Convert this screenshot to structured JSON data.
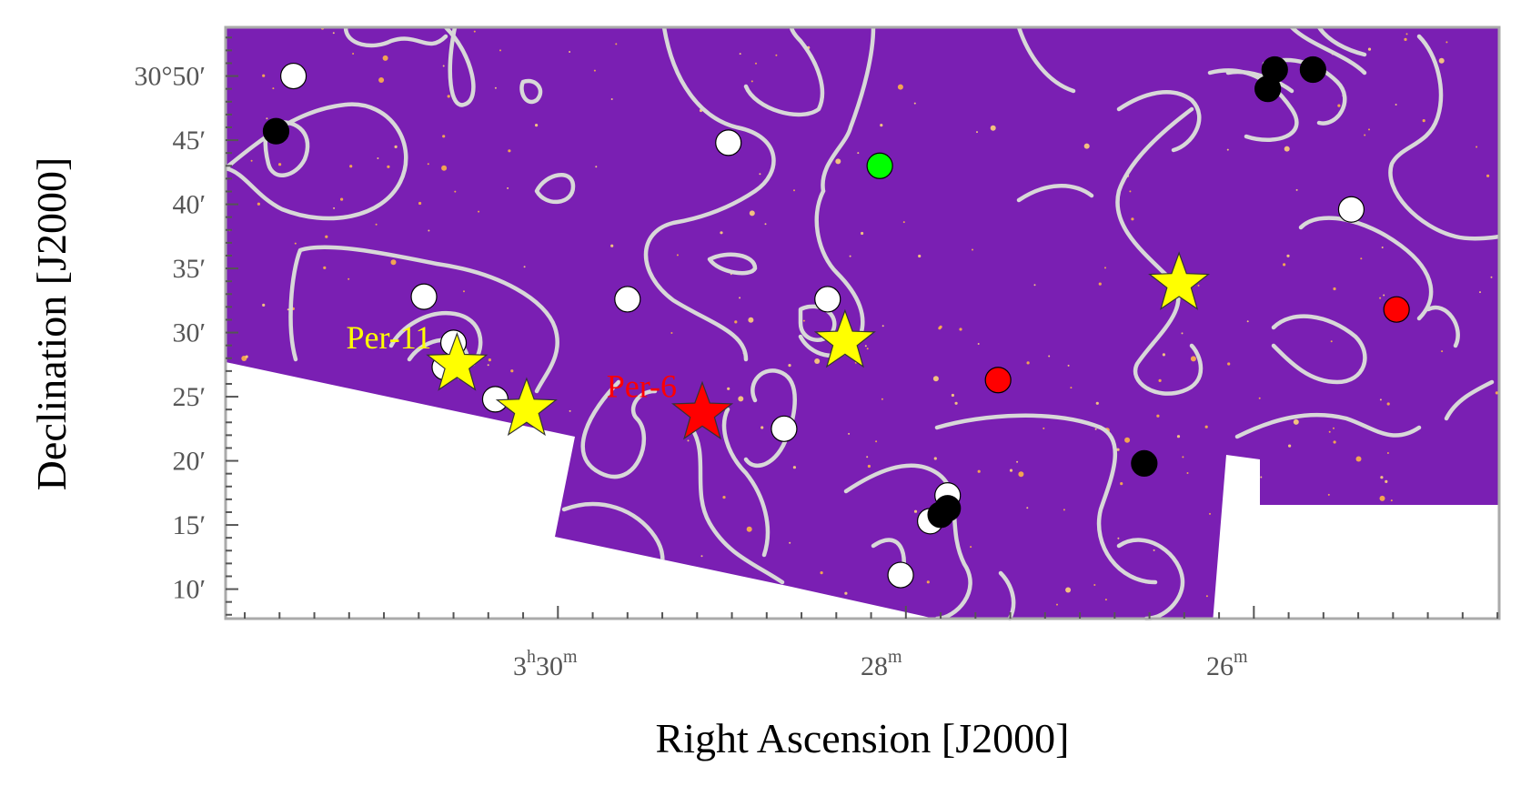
{
  "chart_data": {
    "type": "scatter",
    "title": "",
    "xlabel": "Right Ascension [J2000]",
    "ylabel": "Declination [J2000]",
    "xlim_ra_minutes": [
      31.91,
      24.59
    ],
    "ylim_dec_arcmin": [
      7.7,
      53.8
    ],
    "x_direction": "decreasing to the right (RA increases to the east/left)",
    "x_ticks": [
      {
        "ra_min": 30,
        "hours": "3",
        "minutes": "30",
        "label": "3h30m"
      },
      {
        "ra_min": 28,
        "hours": "",
        "minutes": "28",
        "label": "28m"
      },
      {
        "ra_min": 26,
        "hours": "",
        "minutes": "26",
        "label": "26m"
      }
    ],
    "y_ticks": [
      {
        "dec_arcmin": 50,
        "label": "30°50′"
      },
      {
        "dec_arcmin": 45,
        "label": "45′"
      },
      {
        "dec_arcmin": 40,
        "label": "40′"
      },
      {
        "dec_arcmin": 35,
        "label": "35′"
      },
      {
        "dec_arcmin": 30,
        "label": "30′"
      },
      {
        "dec_arcmin": 25,
        "label": "25′"
      },
      {
        "dec_arcmin": 20,
        "label": "20′"
      },
      {
        "dec_arcmin": 15,
        "label": "15′"
      },
      {
        "dec_arcmin": 10,
        "label": "10′"
      }
    ],
    "background": "purple false-colour optical image with white contour lines",
    "colors": {
      "image": "#7a1fb3",
      "contours": "#d8d8d8",
      "yellow_star": "#ffff00",
      "red_star": "#ff0000",
      "red_point": "#ff0000",
      "green_point": "#00ff00",
      "white_point": "#ffffff",
      "black_point": "#000000",
      "frame": "#aaaaaa"
    },
    "series": [
      {
        "marker": "star",
        "color": "#ffff00",
        "points": [
          {
            "ra_min": 30.58,
            "dec_arcmin": 27.5
          },
          {
            "ra_min": 30.18,
            "dec_arcmin": 24.0
          },
          {
            "ra_min": 28.35,
            "dec_arcmin": 29.3
          },
          {
            "ra_min": 26.43,
            "dec_arcmin": 33.8
          }
        ]
      },
      {
        "marker": "star",
        "color": "#ff0000",
        "points": [
          {
            "ra_min": 29.17,
            "dec_arcmin": 23.7
          }
        ]
      },
      {
        "marker": "circle",
        "color": "#ff0000",
        "points": [
          {
            "ra_min": 27.47,
            "dec_arcmin": 26.3
          },
          {
            "ra_min": 25.18,
            "dec_arcmin": 31.8
          }
        ]
      },
      {
        "marker": "circle",
        "color": "#00ff00",
        "points": [
          {
            "ra_min": 28.15,
            "dec_arcmin": 43.0
          }
        ]
      },
      {
        "marker": "circle",
        "color": "#ffffff",
        "points": [
          {
            "ra_min": 31.52,
            "dec_arcmin": 50.0
          },
          {
            "ra_min": 29.02,
            "dec_arcmin": 44.8
          },
          {
            "ra_min": 25.44,
            "dec_arcmin": 39.6
          },
          {
            "ra_min": 30.77,
            "dec_arcmin": 32.8
          },
          {
            "ra_min": 29.6,
            "dec_arcmin": 32.6
          },
          {
            "ra_min": 28.45,
            "dec_arcmin": 32.6
          },
          {
            "ra_min": 30.6,
            "dec_arcmin": 29.2
          },
          {
            "ra_min": 30.65,
            "dec_arcmin": 27.3
          },
          {
            "ra_min": 30.36,
            "dec_arcmin": 24.8
          },
          {
            "ra_min": 28.7,
            "dec_arcmin": 22.5
          },
          {
            "ra_min": 27.76,
            "dec_arcmin": 17.3
          },
          {
            "ra_min": 27.86,
            "dec_arcmin": 15.3
          },
          {
            "ra_min": 28.03,
            "dec_arcmin": 11.1
          }
        ]
      },
      {
        "marker": "circle",
        "color": "#000000",
        "points": [
          {
            "ra_min": 31.62,
            "dec_arcmin": 45.7
          },
          {
            "ra_min": 25.88,
            "dec_arcmin": 50.5
          },
          {
            "ra_min": 25.66,
            "dec_arcmin": 50.5
          },
          {
            "ra_min": 25.92,
            "dec_arcmin": 49.0
          },
          {
            "ra_min": 26.63,
            "dec_arcmin": 19.8
          },
          {
            "ra_min": 27.76,
            "dec_arcmin": 16.3
          },
          {
            "ra_min": 27.8,
            "dec_arcmin": 15.8
          }
        ]
      }
    ],
    "annotations": [
      {
        "text": "Per-11",
        "color": "#ffff00",
        "ra_min": 30.58,
        "dec_arcmin": 27.5
      },
      {
        "text": "Per-6",
        "color": "#ff0000",
        "ra_min": 29.17,
        "dec_arcmin": 23.7
      }
    ]
  }
}
